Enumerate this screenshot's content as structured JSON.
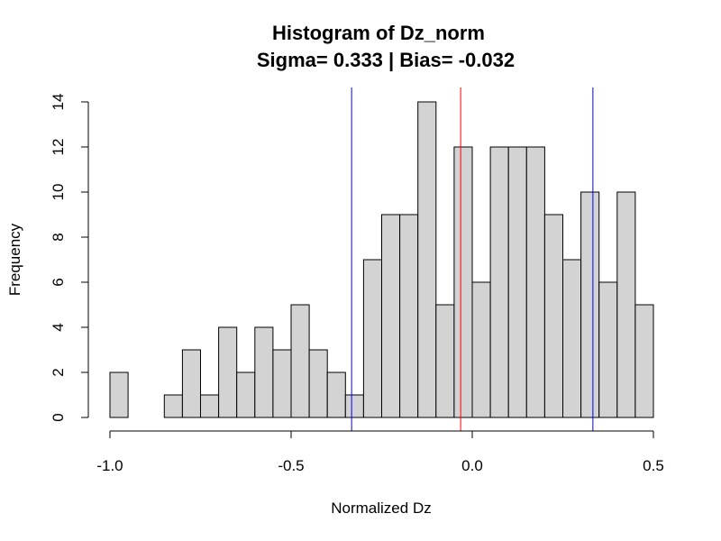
{
  "chart_data": {
    "type": "bar",
    "title": "Histogram of Dz_norm",
    "subtitle": "Sigma= 0.333 | Bias= -0.032",
    "xlabel": "Normalized Dz",
    "ylabel": "Frequency",
    "xlim": [
      -1.0,
      0.5
    ],
    "ylim": [
      0,
      14
    ],
    "bin_width": 0.05,
    "bins": [
      {
        "start": -1.0,
        "end": -0.95,
        "count": 2
      },
      {
        "start": -0.95,
        "end": -0.9,
        "count": 0
      },
      {
        "start": -0.9,
        "end": -0.85,
        "count": 0
      },
      {
        "start": -0.85,
        "end": -0.8,
        "count": 1
      },
      {
        "start": -0.8,
        "end": -0.75,
        "count": 3
      },
      {
        "start": -0.75,
        "end": -0.7,
        "count": 1
      },
      {
        "start": -0.7,
        "end": -0.65,
        "count": 4
      },
      {
        "start": -0.65,
        "end": -0.6,
        "count": 2
      },
      {
        "start": -0.6,
        "end": -0.55,
        "count": 4
      },
      {
        "start": -0.55,
        "end": -0.5,
        "count": 3
      },
      {
        "start": -0.5,
        "end": -0.45,
        "count": 5
      },
      {
        "start": -0.45,
        "end": -0.4,
        "count": 3
      },
      {
        "start": -0.4,
        "end": -0.35,
        "count": 2
      },
      {
        "start": -0.35,
        "end": -0.3,
        "count": 1
      },
      {
        "start": -0.3,
        "end": -0.25,
        "count": 7
      },
      {
        "start": -0.25,
        "end": -0.2,
        "count": 9
      },
      {
        "start": -0.2,
        "end": -0.15,
        "count": 9
      },
      {
        "start": -0.15,
        "end": -0.1,
        "count": 14
      },
      {
        "start": -0.1,
        "end": -0.05,
        "count": 5
      },
      {
        "start": -0.05,
        "end": 0.0,
        "count": 12
      },
      {
        "start": 0.0,
        "end": 0.05,
        "count": 6
      },
      {
        "start": 0.05,
        "end": 0.1,
        "count": 12
      },
      {
        "start": 0.1,
        "end": 0.15,
        "count": 12
      },
      {
        "start": 0.15,
        "end": 0.2,
        "count": 12
      },
      {
        "start": 0.2,
        "end": 0.25,
        "count": 9
      },
      {
        "start": 0.25,
        "end": 0.3,
        "count": 7
      },
      {
        "start": 0.3,
        "end": 0.35,
        "count": 10
      },
      {
        "start": 0.35,
        "end": 0.4,
        "count": 6
      },
      {
        "start": 0.4,
        "end": 0.45,
        "count": 10
      },
      {
        "start": 0.45,
        "end": 0.5,
        "count": 5
      }
    ],
    "x_ticks": [
      {
        "value": -1.0,
        "label": "-1.0"
      },
      {
        "value": -0.5,
        "label": "-0.5"
      },
      {
        "value": 0.0,
        "label": "0.0"
      },
      {
        "value": 0.5,
        "label": "0.5"
      }
    ],
    "y_ticks": [
      {
        "value": 0,
        "label": "0"
      },
      {
        "value": 2,
        "label": "2"
      },
      {
        "value": 4,
        "label": "4"
      },
      {
        "value": 6,
        "label": "6"
      },
      {
        "value": 8,
        "label": "8"
      },
      {
        "value": 10,
        "label": "10"
      },
      {
        "value": 12,
        "label": "12"
      },
      {
        "value": 14,
        "label": "14"
      }
    ],
    "vlines": [
      {
        "x": -0.333,
        "color": "#0000ff",
        "role": "minus-sigma"
      },
      {
        "x": -0.032,
        "color": "#ff0000",
        "role": "bias"
      },
      {
        "x": 0.333,
        "color": "#0000ff",
        "role": "plus-sigma"
      }
    ],
    "bar_fill": "#d3d3d3",
    "bar_stroke": "#000000",
    "grid": false
  }
}
